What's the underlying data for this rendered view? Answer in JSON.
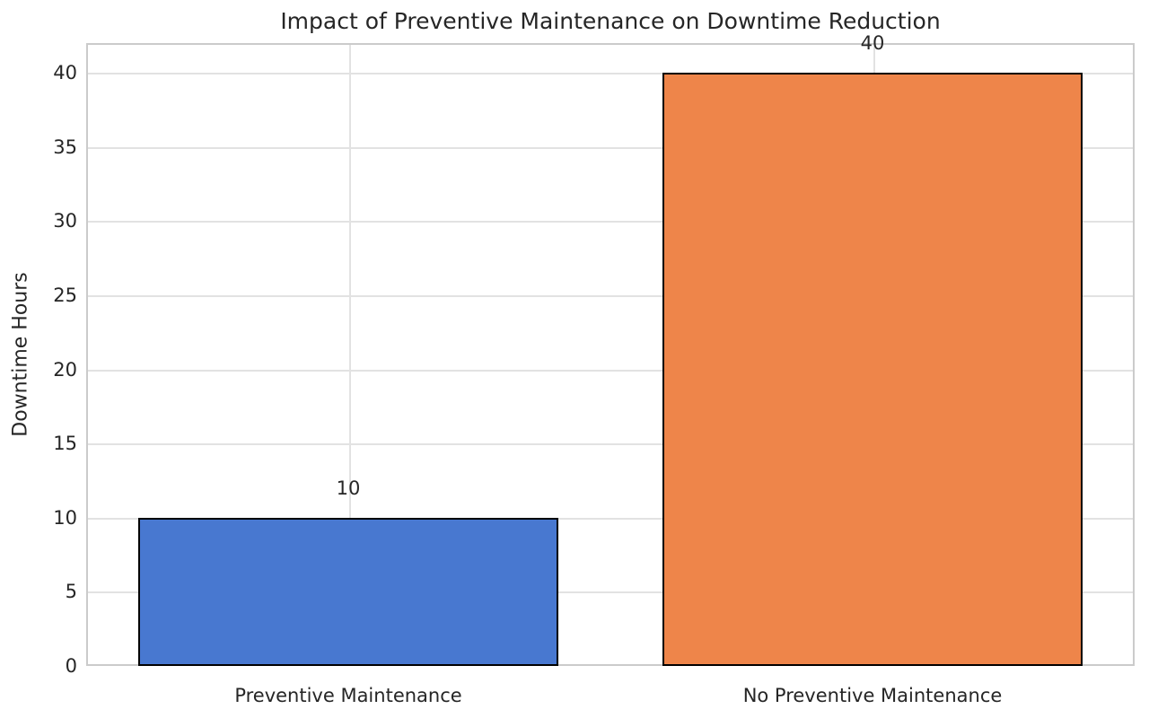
{
  "style": {
    "background": "#ffffff",
    "text_color": "#262626",
    "grid_color": "#e2e2e2",
    "spine_color": "#cbcbcb",
    "bar_edge_color": "#000000"
  },
  "chart_data": {
    "type": "bar",
    "title": "Impact of Preventive Maintenance on Downtime Reduction",
    "xlabel": "",
    "ylabel": "Downtime Hours",
    "categories": [
      "Preventive Maintenance",
      "No Preventive Maintenance"
    ],
    "values": [
      10,
      40
    ],
    "bar_value_labels": [
      "10",
      "40"
    ],
    "bar_colors": [
      "#4878d0",
      "#ee854a"
    ],
    "ylim": [
      0,
      42
    ],
    "yticks": [
      0,
      5,
      10,
      15,
      20,
      25,
      30,
      35,
      40
    ],
    "grid": true,
    "legend_position": "none"
  }
}
